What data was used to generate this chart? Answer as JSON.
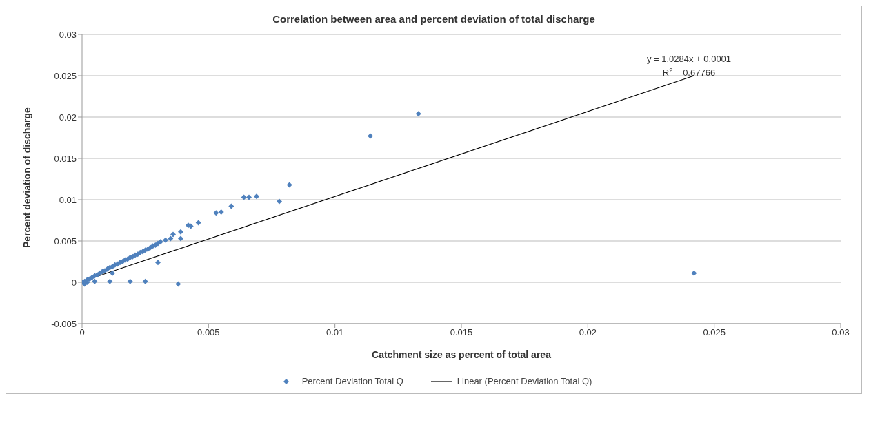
{
  "chart_data": {
    "type": "scatter",
    "title": "Correlation between area and percent deviation of total discharge",
    "xlabel": "Catchment size as percent of total area",
    "ylabel": "Percent deviation of discharge",
    "xlim": [
      0,
      0.03
    ],
    "xticks": [
      0,
      0.005,
      0.01,
      0.015,
      0.02,
      0.025,
      0.03
    ],
    "ylim": [
      -0.005,
      0.03
    ],
    "yticks": [
      -0.005,
      0,
      0.005,
      0.01,
      0.015,
      0.02,
      0.025,
      0.03
    ],
    "grid": "y",
    "legend": "bottom",
    "annotations": [
      "y = 1.0284x + 0.0001",
      "R$^{2}$ = 0.67766"
    ],
    "series": [
      {
        "name": "Percent Deviation Total Q",
        "marker": "diamond",
        "color": "#4f81bd",
        "x": [
          0,
          0.0001,
          0.0002,
          0.0001,
          0.0002,
          0.0003,
          0.0004,
          0.0005,
          0.0005,
          0.0006,
          0.0007,
          0.0008,
          0.0009,
          0.001,
          0.0011,
          0.0012,
          0.0013,
          0.0014,
          0.0015,
          0.0016,
          0.0017,
          0.0018,
          0.0019,
          0.002,
          0.0021,
          0.0022,
          0.0023,
          0.0024,
          0.0025,
          0.0026,
          0.0027,
          0.0028,
          0.0029,
          0.003,
          0.0031,
          0.0033,
          0.0035,
          0.0036,
          0.0039,
          0.0039,
          0.0042,
          0.0043,
          0.0046,
          0.0053,
          0.0055,
          0.0059,
          0.0064,
          0.0066,
          0.0069,
          0.0078,
          0.0082,
          0.0114,
          0.0133,
          0.0242,
          0.0011,
          0.0012,
          0.0019,
          0.0025,
          0.003,
          0.0038
        ],
        "values": [
          0,
          -0.0002,
          0,
          0.0001,
          0.0003,
          0.0004,
          0.0006,
          0.0001,
          0.0008,
          0.0009,
          0.0011,
          0.0013,
          0.0014,
          0.0016,
          0.0018,
          0.0019,
          0.0021,
          0.0022,
          0.0024,
          0.0025,
          0.0027,
          0.0028,
          0.003,
          0.0031,
          0.0033,
          0.0034,
          0.0036,
          0.0037,
          0.0039,
          0.004,
          0.0042,
          0.0044,
          0.0045,
          0.0047,
          0.0049,
          0.0051,
          0.0053,
          0.0058,
          0.0061,
          0.0053,
          0.0069,
          0.0068,
          0.0072,
          0.0084,
          0.0085,
          0.0092,
          0.0103,
          0.0103,
          0.0104,
          0.0098,
          0.0118,
          0.0177,
          0.0204,
          0.0011,
          0.0001,
          0.0011,
          0.0001,
          0.0001,
          0.0024,
          -0.0002
        ]
      },
      {
        "name": "Linear (Percent Deviation Total Q)",
        "type": "line",
        "marker": "none",
        "color": "#000000",
        "x": [
          0,
          0.0242
        ],
        "values": [
          0.0001,
          0.025
        ]
      }
    ]
  }
}
